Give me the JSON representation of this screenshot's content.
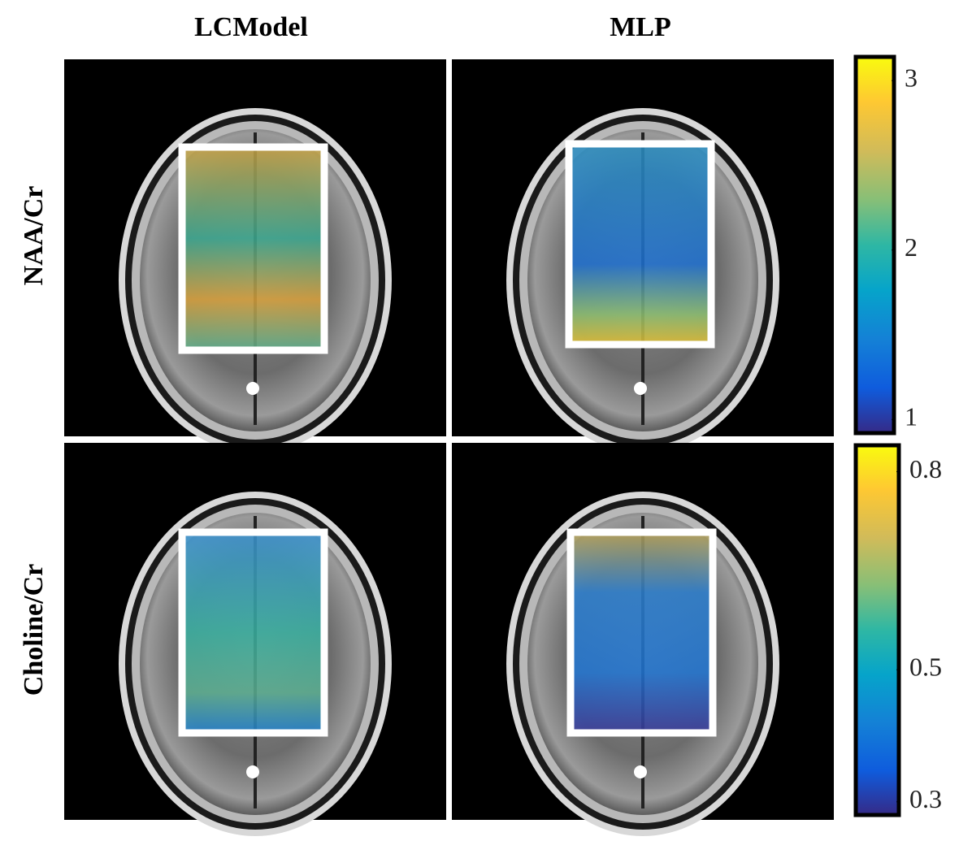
{
  "columns": [
    "LCModel",
    "MLP"
  ],
  "rows": [
    "NAA/Cr",
    "Choline/Cr"
  ],
  "colorbars": [
    {
      "range": [
        0.92,
        3.14
      ],
      "ticks": [
        1,
        2,
        3
      ]
    },
    {
      "range": [
        0.28,
        0.84
      ],
      "ticks": [
        0.3,
        0.5,
        0.8
      ]
    }
  ]
}
